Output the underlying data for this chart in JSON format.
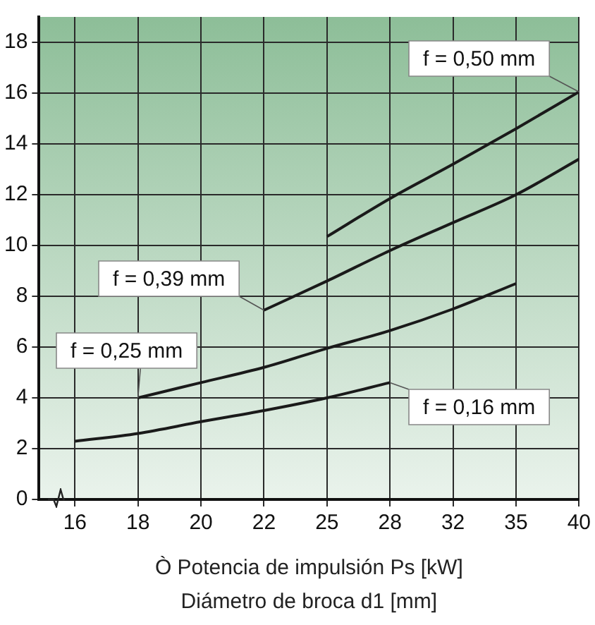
{
  "chart_data": {
    "type": "line",
    "xlabel": "Ò Potencia de impulsión Ps [kW]\nDiámetro de broca d1 [mm]",
    "categories": [
      "16",
      "18",
      "20",
      "22",
      "25",
      "28",
      "32",
      "35",
      "40"
    ],
    "ylim": [
      0,
      19
    ],
    "yticks": [
      0,
      2,
      4,
      6,
      8,
      10,
      12,
      14,
      16,
      18
    ],
    "grid": true,
    "legend": false,
    "marker": "none",
    "line_style": "solid",
    "series": [
      {
        "name": "f = 0,50 mm",
        "color": "#1a1a1a",
        "values": [
          null,
          null,
          null,
          null,
          10.35,
          11.85,
          13.2,
          14.6,
          16.05
        ]
      },
      {
        "name": "f = 0,39 mm",
        "color": "#1a1a1a",
        "values": [
          null,
          null,
          null,
          7.45,
          8.6,
          9.8,
          10.9,
          12.0,
          13.4
        ]
      },
      {
        "name": "f = 0,25 mm",
        "color": "#1a1a1a",
        "values": [
          null,
          4.0,
          4.6,
          5.2,
          5.95,
          6.65,
          7.5,
          8.5,
          null
        ]
      },
      {
        "name": "f = 0,16 mm",
        "color": "#1a1a1a",
        "values": [
          2.29,
          2.6,
          3.06,
          3.5,
          4.0,
          4.6,
          null,
          null,
          null
        ]
      }
    ]
  }
}
